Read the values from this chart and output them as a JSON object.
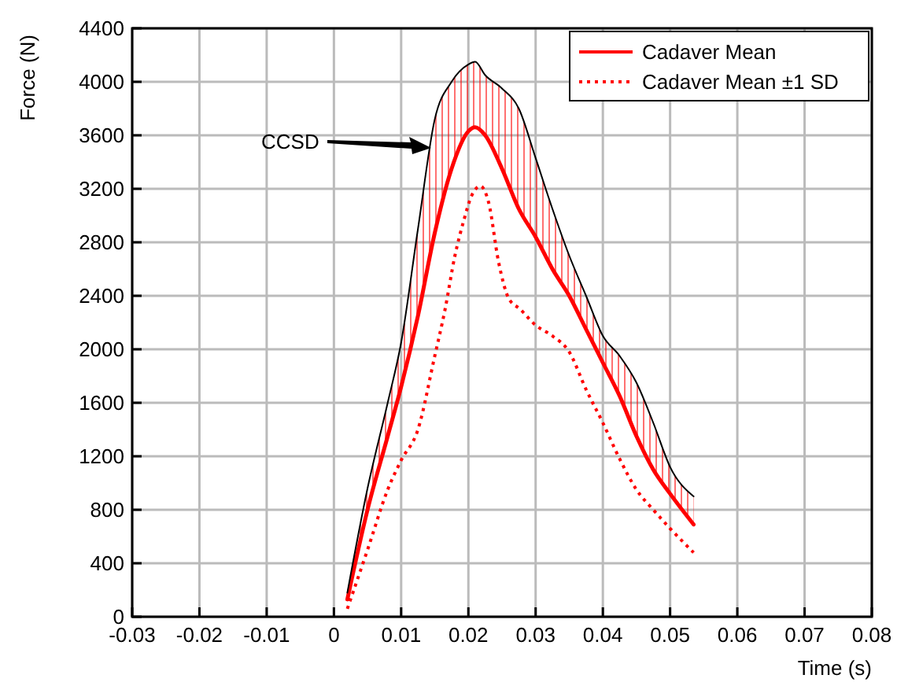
{
  "chart_data": {
    "type": "line",
    "xlabel": "Time (s)",
    "ylabel": "Force (N)",
    "xlim": [
      -0.03,
      0.08
    ],
    "xticks": [
      -0.03,
      -0.02,
      -0.01,
      0,
      0.01,
      0.02,
      0.03,
      0.04,
      0.05,
      0.06,
      0.07,
      0.08
    ],
    "ylim": [
      0,
      4400
    ],
    "yticks": [
      0,
      400,
      800,
      1200,
      1600,
      2000,
      2400,
      2800,
      3200,
      3600,
      4000,
      4400
    ],
    "grid": true,
    "legend": "top right",
    "annotations": [
      "CCSD"
    ],
    "series": [
      {
        "name": "Cadaver Mean",
        "color": "#ff0000",
        "line_style": "solid",
        "x": [
          0.002,
          0.005,
          0.008,
          0.01,
          0.0125,
          0.015,
          0.0175,
          0.02,
          0.021,
          0.0225,
          0.025,
          0.0275,
          0.03,
          0.0325,
          0.035,
          0.0375,
          0.04,
          0.0425,
          0.045,
          0.0475,
          0.05,
          0.0535
        ],
        "values": [
          130,
          800,
          1350,
          1720,
          2250,
          2870,
          3350,
          3630,
          3660,
          3600,
          3350,
          3050,
          2840,
          2600,
          2400,
          2150,
          1900,
          1650,
          1350,
          1100,
          920,
          690
        ],
        "lower": [
          130,
          800,
          1350,
          1720,
          2250,
          2870,
          3350,
          3630,
          3660,
          3600,
          3350,
          3050,
          2840,
          2600,
          2400,
          2150,
          1900,
          1650,
          1350,
          1100,
          920,
          690
        ],
        "upper": [
          180,
          960,
          1600,
          2050,
          2900,
          3720,
          4000,
          4130,
          4150,
          4050,
          3950,
          3800,
          3430,
          3050,
          2700,
          2400,
          2100,
          1950,
          1750,
          1450,
          1120,
          900
        ]
      },
      {
        "name": "Cadaver Mean ±1 SD",
        "color": "#ff0000",
        "line_style": "dotted",
        "x": [
          0.002,
          0.005,
          0.008,
          0.01,
          0.0125,
          0.015,
          0.0165,
          0.018,
          0.0193,
          0.0205,
          0.0218,
          0.023,
          0.0245,
          0.026,
          0.0277,
          0.03,
          0.0325,
          0.035,
          0.0375,
          0.04,
          0.0425,
          0.045,
          0.0475,
          0.05,
          0.0535
        ],
        "values": [
          60,
          500,
          950,
          1170,
          1400,
          1950,
          2290,
          2700,
          2960,
          3150,
          3220,
          3100,
          2650,
          2380,
          2300,
          2180,
          2100,
          1980,
          1700,
          1450,
          1180,
          950,
          800,
          660,
          480
        ]
      },
      {
        "color": "#000000",
        "line_style": "solid",
        "x": [
          0.002,
          0.005,
          0.008,
          0.01,
          0.0125,
          0.015,
          0.0175,
          0.02,
          0.021,
          0.0225,
          0.025,
          0.0275,
          0.03,
          0.0325,
          0.035,
          0.0375,
          0.04,
          0.0425,
          0.045,
          0.0475,
          0.05,
          0.0535
        ],
        "values": [
          180,
          960,
          1600,
          2050,
          2900,
          3720,
          4000,
          4130,
          4150,
          4050,
          3950,
          3800,
          3430,
          3050,
          2700,
          2400,
          2100,
          1950,
          1750,
          1450,
          1120,
          900
        ]
      }
    ]
  }
}
